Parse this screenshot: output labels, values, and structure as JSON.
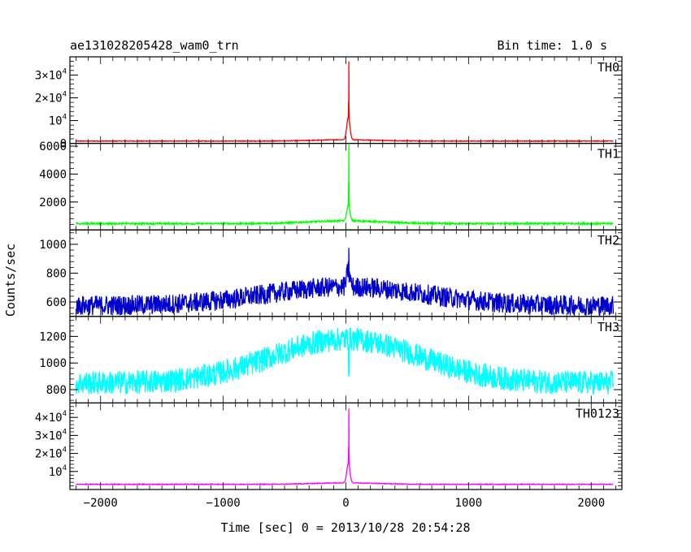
{
  "header": {
    "title": "ae131028205428_wam0_trn",
    "bin_time": "Bin time: 1.0 s"
  },
  "chart_data": {
    "type": "line",
    "title": "ae131028205428_wam0_trn",
    "xlabel": "Time [sec] 0 = 2013/10/28 20:54:28",
    "ylabel": "Counts/sec",
    "xlim": [
      -2250,
      2250
    ],
    "data_range": [
      -2200,
      2180
    ],
    "x_ticks": [
      -2000,
      -1000,
      0,
      1000,
      2000
    ],
    "x_tick_labels": [
      "−2000",
      "−1000",
      "0",
      "1000",
      "2000"
    ],
    "grid": false,
    "legend": "none",
    "panels": [
      {
        "name": "TH0",
        "color": "#ff0000",
        "ylim": [
          0,
          38000
        ],
        "ticks": [
          0,
          10000,
          20000,
          30000
        ],
        "tick_labels": [
          {
            "base": "0",
            "exp": ""
          },
          {
            "base": "10",
            "exp": "4"
          },
          {
            "base": "2×10",
            "exp": "4"
          },
          {
            "base": "3×10",
            "exp": "4"
          }
        ],
        "profile": {
          "baseline": 1000,
          "slope": 0,
          "hump_amp": 600,
          "hump_sigma": 250,
          "noise": 150,
          "peak_amp": 35000,
          "shoulder_amp": 10000
        }
      },
      {
        "name": "TH1",
        "color": "#00ff00",
        "ylim": [
          0,
          6200
        ],
        "ticks": [
          2000,
          4000,
          6000
        ],
        "tick_labels": [
          {
            "base": "2000",
            "exp": ""
          },
          {
            "base": "4000",
            "exp": ""
          },
          {
            "base": "6000",
            "exp": ""
          }
        ],
        "profile": {
          "baseline": 450,
          "slope": 0,
          "hump_amp": 200,
          "hump_sigma": 300,
          "noise": 60,
          "peak_amp": 5800,
          "shoulder_amp": 1100
        }
      },
      {
        "name": "TH2",
        "color": "#0000cc",
        "ylim": [
          500,
          1100
        ],
        "ticks": [
          600,
          800,
          1000
        ],
        "tick_labels": [
          {
            "base": "600",
            "exp": ""
          },
          {
            "base": "800",
            "exp": ""
          },
          {
            "base": "1000",
            "exp": ""
          }
        ],
        "profile": {
          "baseline": 575,
          "slope": 0,
          "hump_amp": 130,
          "hump_sigma": 650,
          "noise": 70,
          "peak_amp": 400,
          "shoulder_amp": 120
        }
      },
      {
        "name": "TH3",
        "color": "#00ffff",
        "ylim": [
          700,
          1350
        ],
        "ticks": [
          800,
          1000,
          1200
        ],
        "tick_labels": [
          {
            "base": "800",
            "exp": ""
          },
          {
            "base": "1000",
            "exp": ""
          },
          {
            "base": "1200",
            "exp": ""
          }
        ],
        "profile": {
          "baseline": 850,
          "slope": 0,
          "hump_amp": 330,
          "hump_sigma": 600,
          "noise": 90,
          "peak_amp": 120,
          "shoulder_amp": 0
        }
      },
      {
        "name": "TH0123",
        "color": "#ff00ff",
        "ylim": [
          0,
          48000
        ],
        "ticks": [
          10000,
          20000,
          30000,
          40000
        ],
        "tick_labels": [
          {
            "base": "10",
            "exp": "4"
          },
          {
            "base": "2×10",
            "exp": "4"
          },
          {
            "base": "3×10",
            "exp": "4"
          },
          {
            "base": "4×10",
            "exp": "4"
          }
        ],
        "profile": {
          "baseline": 2900,
          "slope": 0,
          "hump_amp": 800,
          "hump_sigma": 250,
          "noise": 200,
          "peak_amp": 42000,
          "shoulder_amp": 11000
        }
      }
    ]
  }
}
